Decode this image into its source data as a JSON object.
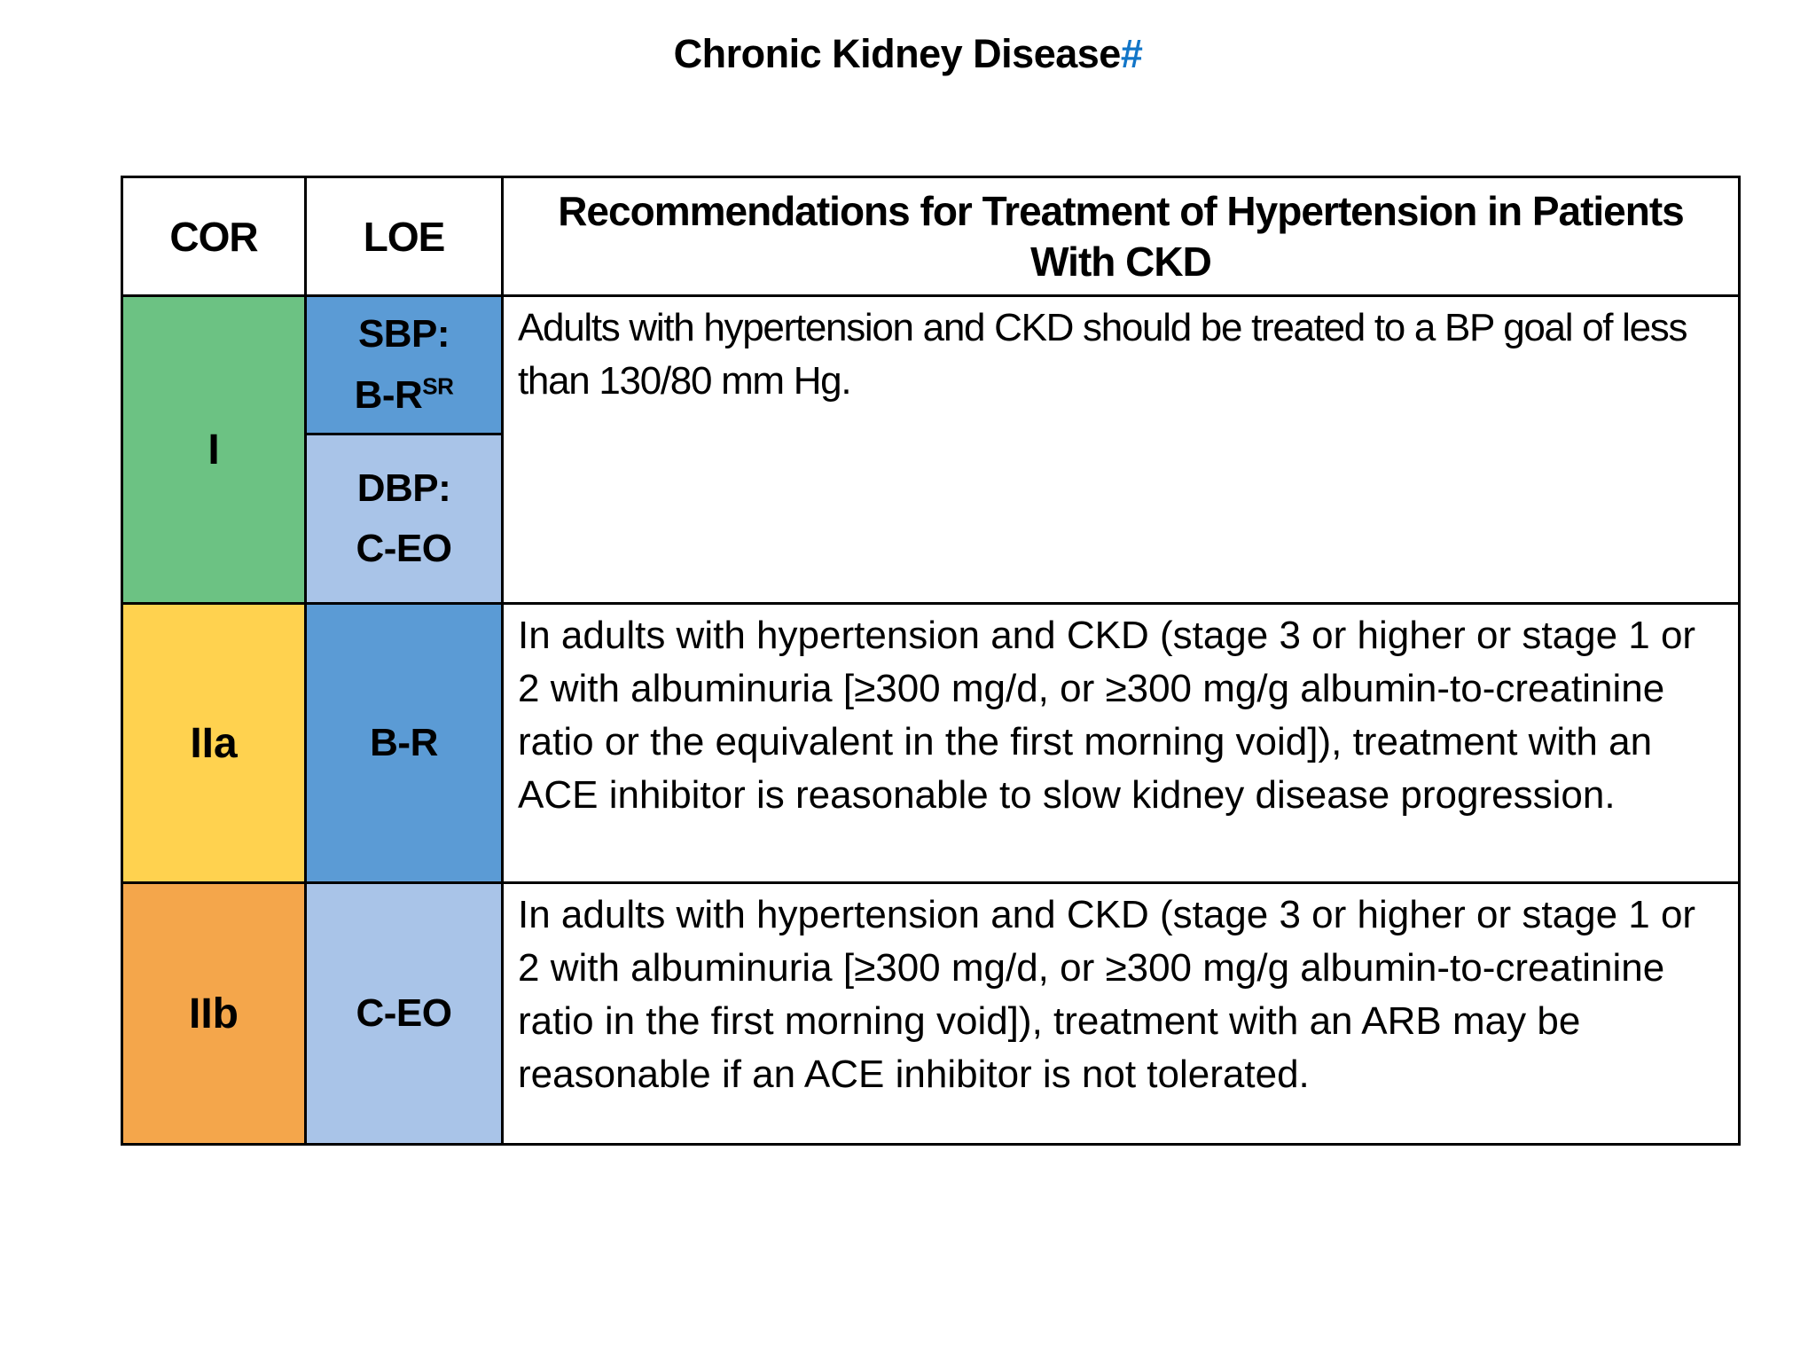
{
  "page": {
    "title": "Chronic Kidney Disease",
    "title_marker": "#",
    "title_marker_color": "#1276C8"
  },
  "table": {
    "headers": {
      "cor": "COR",
      "loe": "LOE",
      "recommendations": "Recommendations for Treatment of Hypertension in Patients With CKD"
    },
    "rows": [
      {
        "cor": "I",
        "cor_color": "#6CC283",
        "loe_cells": [
          {
            "prefix": "SBP:",
            "value": "B-R",
            "superscript": "SR",
            "color": "#5B9BD5"
          },
          {
            "prefix": "DBP:",
            "value": "C-EO",
            "color": "#A9C4E8"
          }
        ],
        "recommendation": "Adults with hypertension and CKD should be treated to a BP goal of less than 130/80 mm Hg."
      },
      {
        "cor": "IIa",
        "cor_color": "#FFD24F",
        "loe": "B-R",
        "loe_color": "#5B9BD5",
        "recommendation": "In adults with hypertension and CKD (stage 3 or higher or stage 1 or 2 with albuminuria [≥300 mg/d, or ≥300 mg/g albumin-to-creatinine ratio or the equivalent in the first morning void]), treatment with an ACE inhibitor is reasonable to slow kidney disease progression."
      },
      {
        "cor": "IIb",
        "cor_color": "#F4A64B",
        "loe": "C-EO",
        "loe_color": "#A9C4E8",
        "recommendation": "In adults with hypertension and CKD (stage 3 or higher or stage 1 or 2 with albuminuria [≥300 mg/d, or ≥300 mg/g albumin-to-creatinine ratio in the first morning void]), treatment with an ARB may be reasonable if an ACE inhibitor is not tolerated."
      }
    ]
  }
}
